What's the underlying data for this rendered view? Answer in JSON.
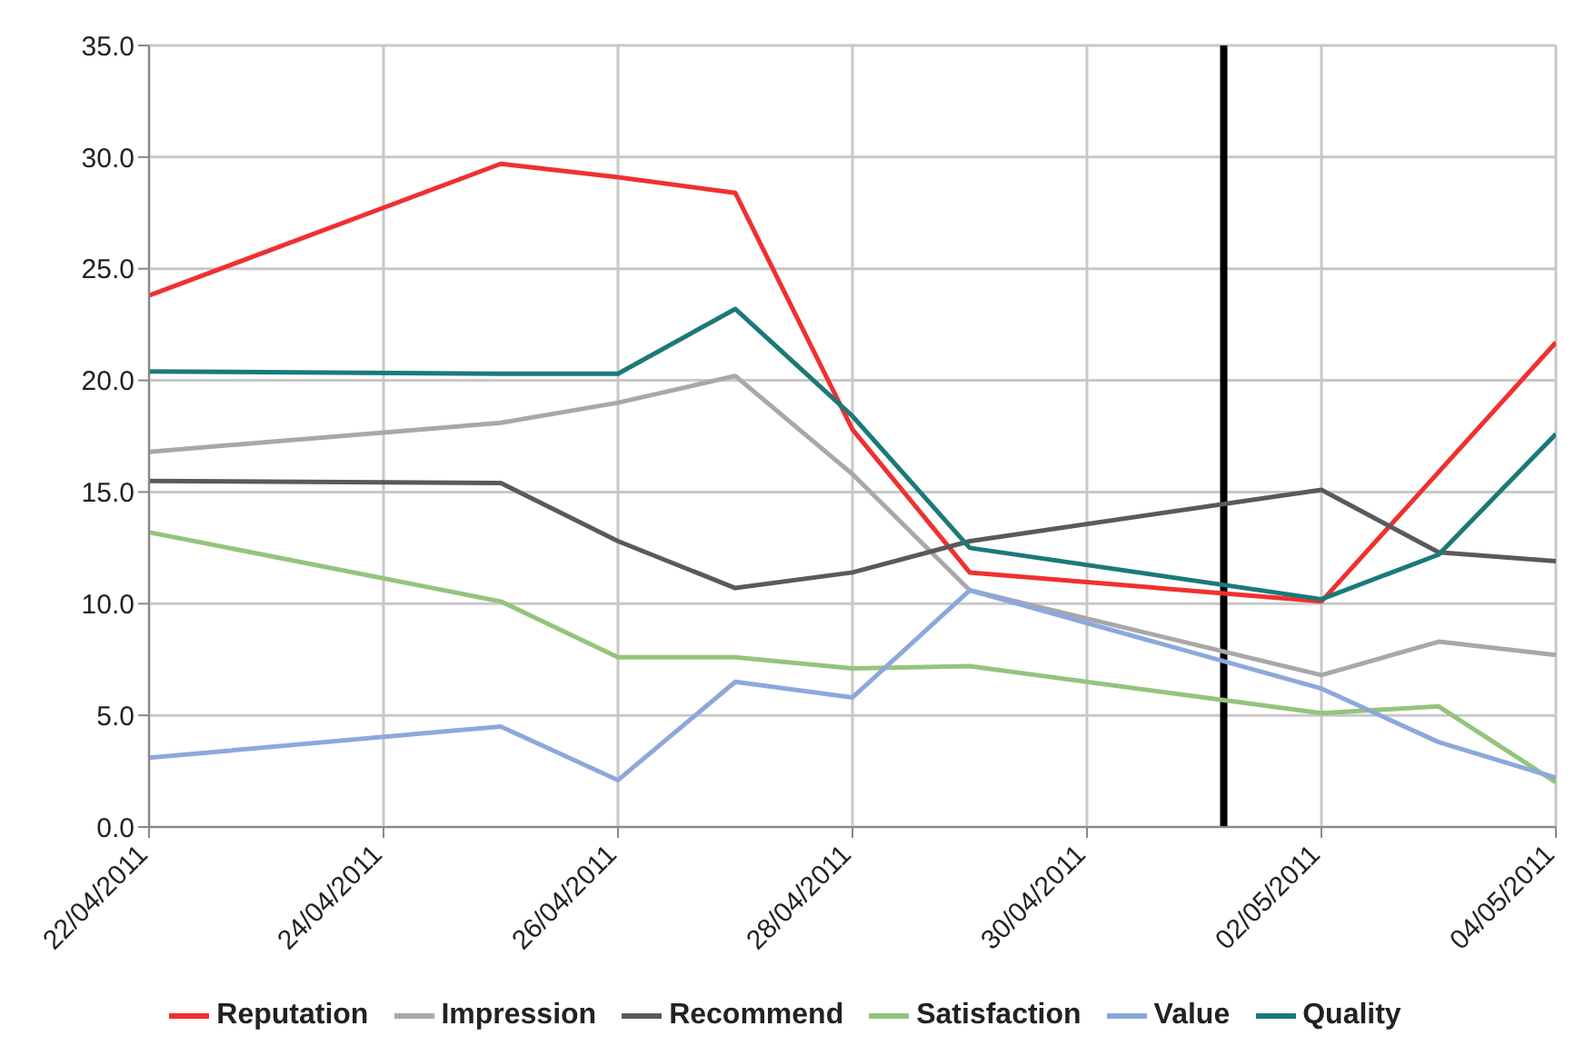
{
  "chart_data": {
    "type": "line",
    "x": [
      "2011-04-22",
      "2011-04-25",
      "2011-04-26",
      "2011-04-27",
      "2011-04-28",
      "2011-04-29",
      "2011-05-02",
      "2011-05-03",
      "2011-05-04"
    ],
    "series": [
      {
        "name": "Reputation",
        "color": "#f03030",
        "values": [
          23.8,
          29.7,
          29.1,
          28.4,
          17.8,
          11.4,
          10.1,
          15.9,
          21.7
        ]
      },
      {
        "name": "Impression",
        "color": "#a8a8a8",
        "values": [
          16.8,
          18.1,
          19.0,
          20.2,
          15.8,
          10.6,
          6.8,
          8.3,
          7.7
        ]
      },
      {
        "name": "Recommend",
        "color": "#5a5a5a",
        "values": [
          15.5,
          15.4,
          12.8,
          10.7,
          11.4,
          12.8,
          15.1,
          12.3,
          11.9
        ]
      },
      {
        "name": "Satisfaction",
        "color": "#94c47c",
        "values": [
          13.2,
          10.1,
          7.6,
          7.6,
          7.1,
          7.2,
          5.1,
          5.4,
          2.0
        ]
      },
      {
        "name": "Value",
        "color": "#8ca8dc",
        "values": [
          3.1,
          4.5,
          2.1,
          6.5,
          5.8,
          10.6,
          6.2,
          3.8,
          2.2
        ]
      },
      {
        "name": "Quality",
        "color": "#1a7a78",
        "values": [
          20.4,
          20.3,
          20.3,
          23.2,
          18.4,
          12.5,
          10.2,
          12.2,
          17.6
        ]
      }
    ],
    "xlim": [
      "2011-04-22",
      "2011-05-04"
    ],
    "xticks": [
      {
        "value": "2011-04-22",
        "label": "22/04/2011"
      },
      {
        "value": "2011-04-24",
        "label": "24/04/2011"
      },
      {
        "value": "2011-04-26",
        "label": "26/04/2011"
      },
      {
        "value": "2011-04-28",
        "label": "28/04/2011"
      },
      {
        "value": "2011-04-30",
        "label": "30/04/2011"
      },
      {
        "value": "2011-05-02",
        "label": "02/05/2011"
      },
      {
        "value": "2011-05-04",
        "label": "04/05/2011"
      }
    ],
    "ylim": [
      0,
      35
    ],
    "yticks": [
      {
        "value": 0,
        "label": "0.0"
      },
      {
        "value": 5,
        "label": "5.0"
      },
      {
        "value": 10,
        "label": "10.0"
      },
      {
        "value": 15,
        "label": "15.0"
      },
      {
        "value": 20,
        "label": "20.0"
      },
      {
        "value": 25,
        "label": "25.0"
      },
      {
        "value": 30,
        "label": "30.0"
      },
      {
        "value": 35,
        "label": "35.0"
      }
    ],
    "ref_lines": [
      {
        "axis": "x",
        "value": "2011-05-01T04:00",
        "color": "#000000"
      }
    ],
    "grid": true,
    "legend": "bottom",
    "marker": "none",
    "line_style": "solid"
  }
}
